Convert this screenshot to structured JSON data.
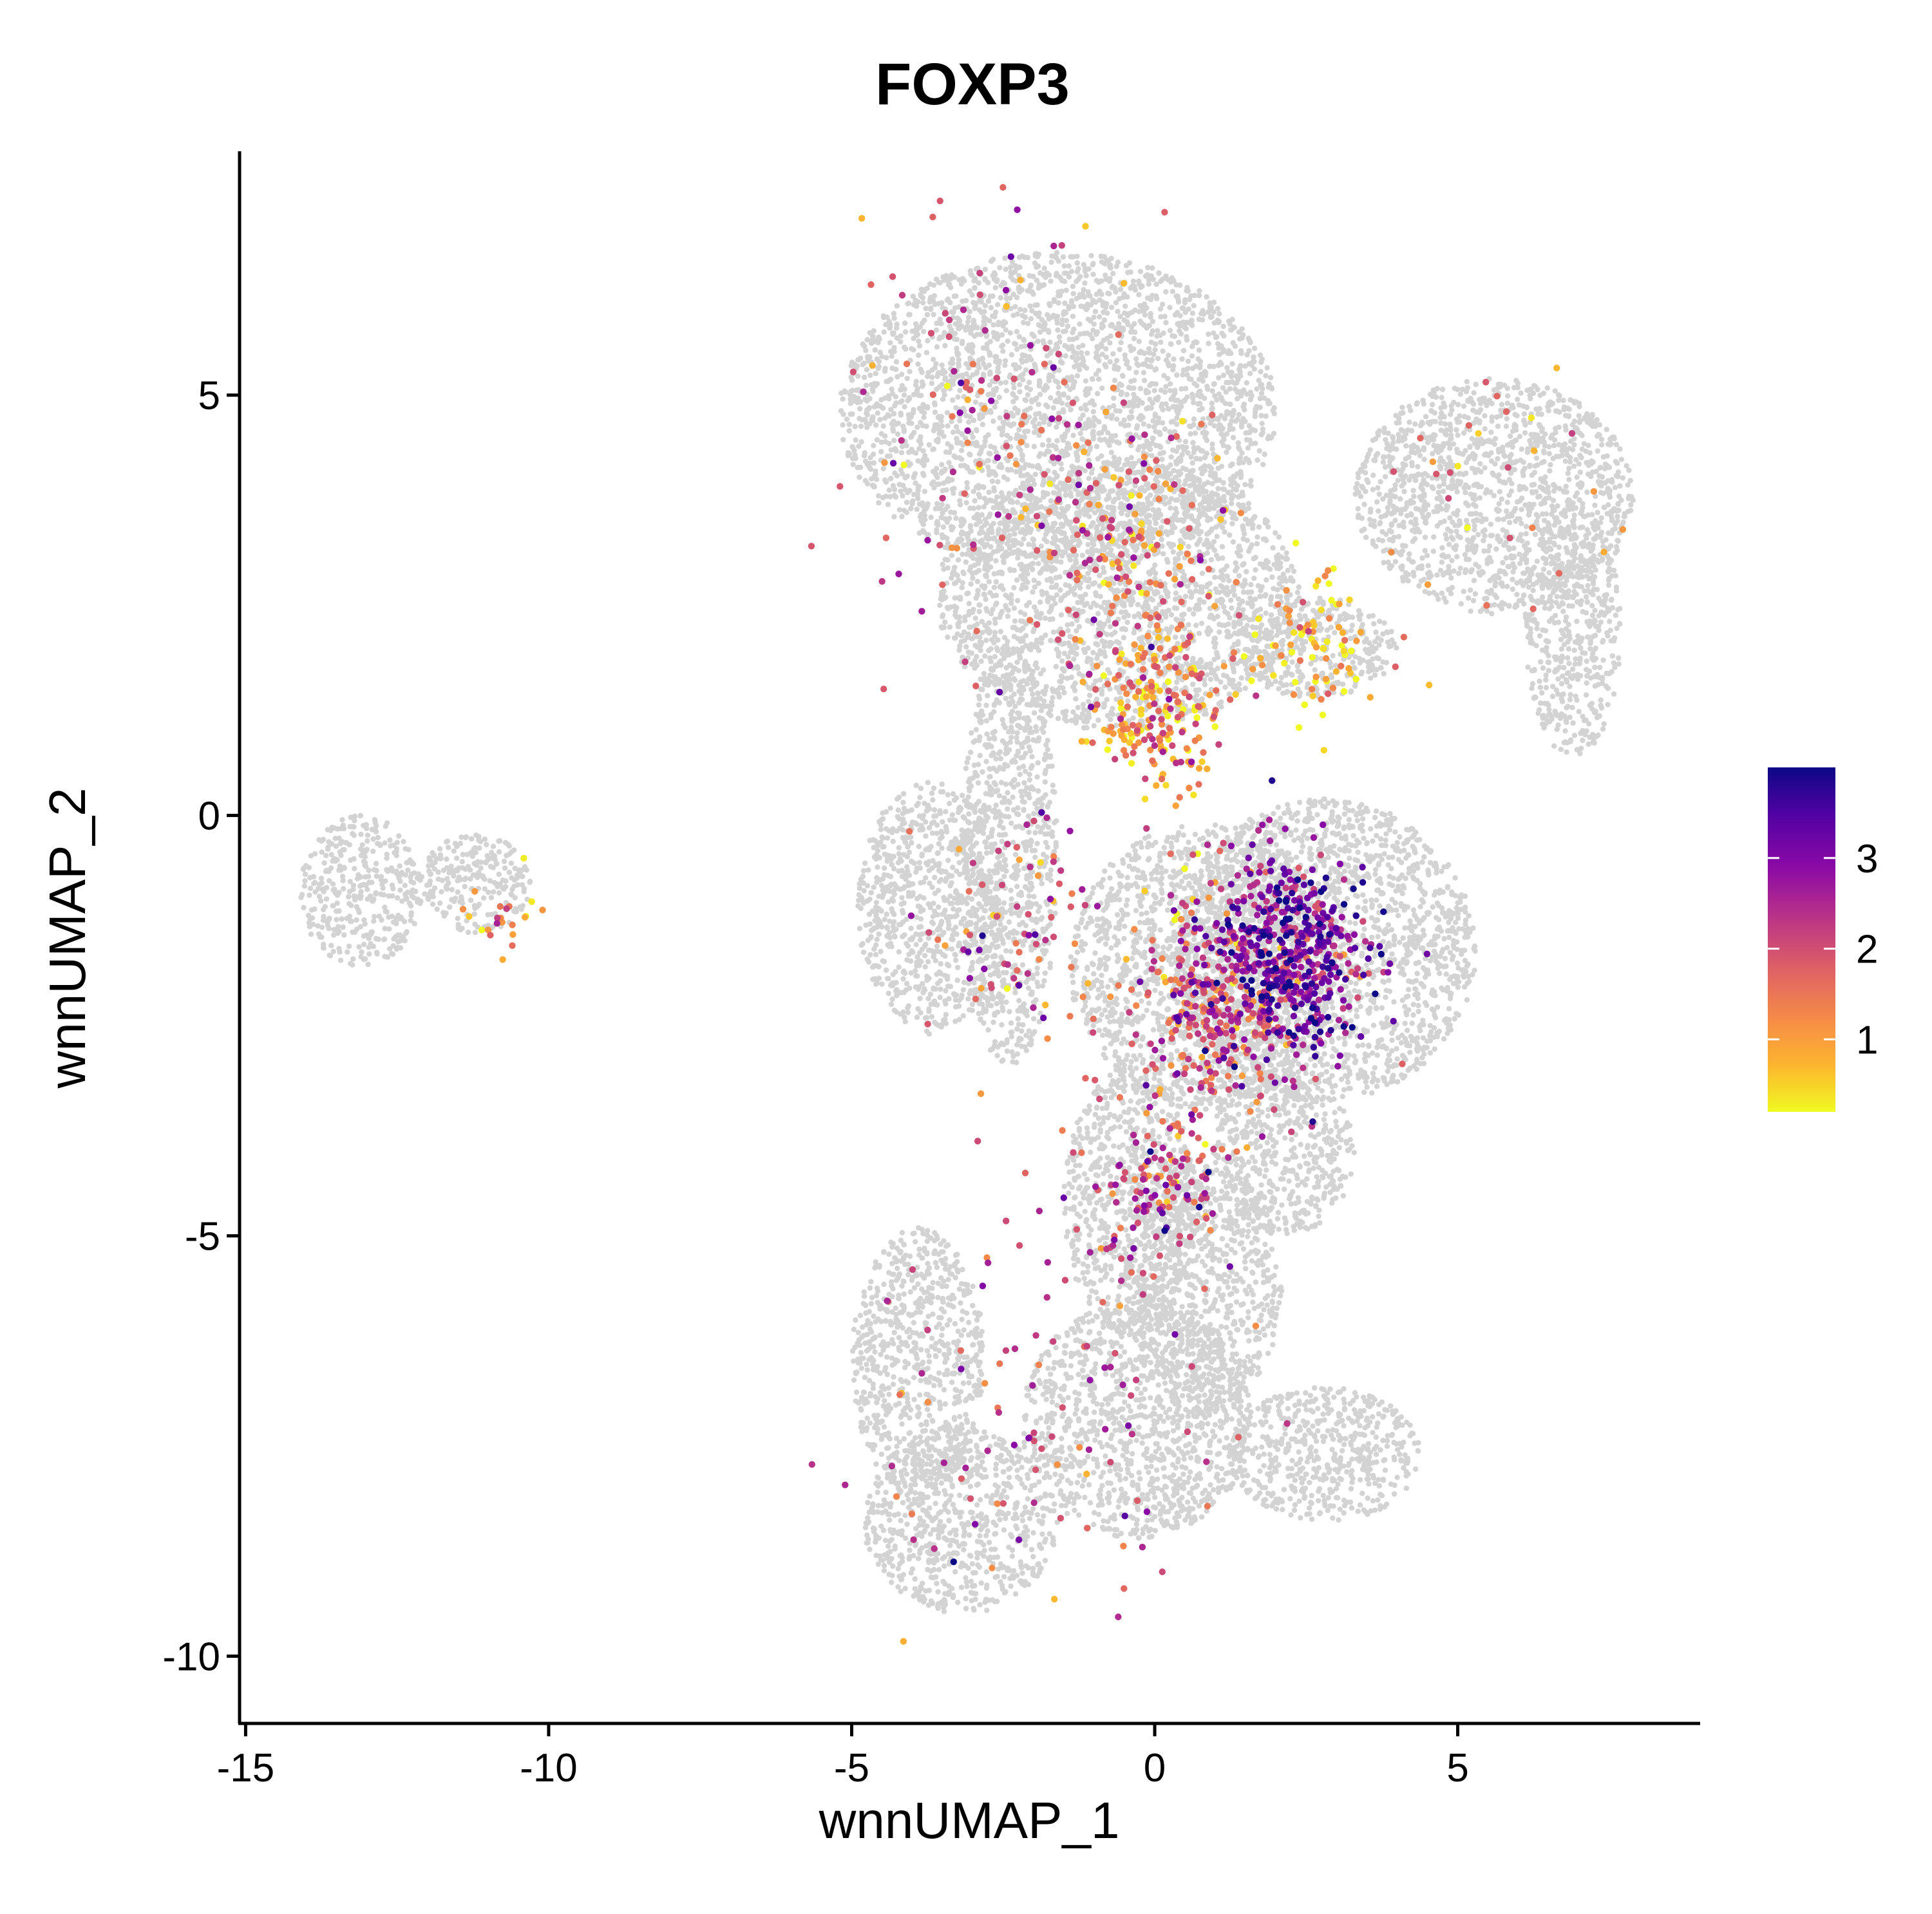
{
  "chart_data": {
    "type": "scatter",
    "title": "FOXP3",
    "xlabel": "wnnUMAP_1",
    "ylabel": "wnnUMAP_2",
    "xlim": [
      -15.1,
      9.0
    ],
    "ylim": [
      -10.8,
      7.9
    ],
    "x_ticks": [
      -15,
      -10,
      -5,
      0,
      5
    ],
    "x_tick_labels": [
      "-15",
      "-10",
      "-5",
      "0",
      "5"
    ],
    "y_ticks": [
      -10,
      -5,
      0,
      5
    ],
    "y_tick_labels": [
      "-10",
      "-5",
      "0",
      "5"
    ],
    "grid": false,
    "background_color": "#d3d3d3",
    "colorbar": {
      "placement": "right",
      "min": 0.2,
      "max": 4.0,
      "ticks": [
        1,
        2,
        3
      ],
      "tick_labels": [
        "1",
        "2",
        "3"
      ],
      "colors": [
        "#f0f921",
        "#fdb32f",
        "#f48849",
        "#db5c68",
        "#b83289",
        "#8b0aa5",
        "#5302a3",
        "#0d0887"
      ]
    },
    "background_regions": [
      {
        "cx": -1.6,
        "cy": 4.8,
        "rx": 3.6,
        "ry": 1.9
      },
      {
        "cx": -0.6,
        "cy": 2.6,
        "rx": 3.0,
        "ry": 1.6
      },
      {
        "cx": 5.6,
        "cy": 3.8,
        "rx": 2.3,
        "ry": 1.4
      },
      {
        "cx": 6.9,
        "cy": 2.2,
        "rx": 0.8,
        "ry": 1.5
      },
      {
        "cx": 2.6,
        "cy": 2.0,
        "rx": 1.4,
        "ry": 0.6
      },
      {
        "cx": 2.8,
        "cy": -1.6,
        "rx": 2.5,
        "ry": 1.8
      },
      {
        "cx": 0.8,
        "cy": -1.8,
        "rx": 2.2,
        "ry": 1.7
      },
      {
        "cx": -3.7,
        "cy": -1.1,
        "rx": 1.2,
        "ry": 1.5
      },
      {
        "cx": -2.4,
        "cy": -0.5,
        "rx": 0.8,
        "ry": 2.5
      },
      {
        "cx": -0.4,
        "cy": -4.6,
        "rx": 1.1,
        "ry": 1.6
      },
      {
        "cx": -3.9,
        "cy": -6.5,
        "rx": 1.1,
        "ry": 1.6
      },
      {
        "cx": -3.2,
        "cy": -8.4,
        "rx": 1.6,
        "ry": 1.1
      },
      {
        "cx": -0.3,
        "cy": -7.2,
        "rx": 1.9,
        "ry": 1.4
      },
      {
        "cx": 0.8,
        "cy": -5.6,
        "rx": 1.3,
        "ry": 1.5
      },
      {
        "cx": 2.8,
        "cy": -7.6,
        "rx": 1.6,
        "ry": 0.8
      },
      {
        "cx": 2.1,
        "cy": -4.0,
        "rx": 1.2,
        "ry": 1.0
      },
      {
        "cx": -13.1,
        "cy": -0.9,
        "rx": 1.0,
        "ry": 0.9
      },
      {
        "cx": -11.2,
        "cy": -0.8,
        "rx": 0.9,
        "ry": 0.6
      }
    ],
    "expression_hotspots": [
      {
        "cx": 2.2,
        "cy": -1.7,
        "spread": 0.8,
        "count": 520,
        "mean_expr": 3.0
      },
      {
        "cx": 1.0,
        "cy": -2.3,
        "spread": 0.9,
        "count": 330,
        "mean_expr": 1.8
      },
      {
        "cx": 0.1,
        "cy": 1.2,
        "spread": 0.6,
        "count": 200,
        "mean_expr": 1.2
      },
      {
        "cx": -0.2,
        "cy": 3.0,
        "spread": 1.0,
        "count": 160,
        "mean_expr": 1.5
      },
      {
        "cx": 2.6,
        "cy": 1.9,
        "spread": 0.6,
        "count": 90,
        "mean_expr": 0.5
      },
      {
        "cx": -2.4,
        "cy": 4.6,
        "spread": 1.6,
        "count": 140,
        "mean_expr": 2.0
      },
      {
        "cx": 0.1,
        "cy": -4.4,
        "spread": 0.6,
        "count": 110,
        "mean_expr": 2.2
      },
      {
        "cx": -2.3,
        "cy": -1.3,
        "spread": 0.9,
        "count": 80,
        "mean_expr": 2.0
      },
      {
        "cx": -0.8,
        "cy": -6.5,
        "spread": 1.5,
        "count": 80,
        "mean_expr": 2.0
      },
      {
        "cx": -10.7,
        "cy": -1.3,
        "spread": 0.3,
        "count": 22,
        "mean_expr": 1.0
      },
      {
        "cx": 5.5,
        "cy": 3.8,
        "spread": 1.4,
        "count": 30,
        "mean_expr": 1.3
      },
      {
        "cx": -3.3,
        "cy": -7.6,
        "spread": 1.3,
        "count": 40,
        "mean_expr": 2.0
      }
    ]
  }
}
